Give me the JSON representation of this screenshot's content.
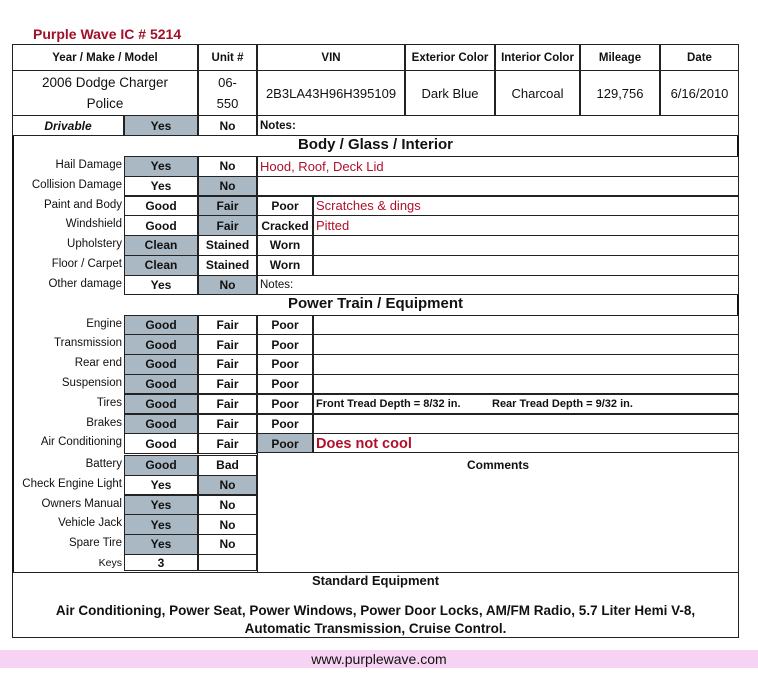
{
  "title": "Purple Wave IC # 5214",
  "header": {
    "columns": [
      "Year / Make / Model",
      "Unit #",
      "VIN",
      "Exterior Color",
      "Interior Color",
      "Mileage",
      "Date"
    ],
    "values": [
      "2006 Dodge Charger Police",
      "06-550",
      "2B3LA43H96H395109",
      "Dark Blue",
      "Charcoal",
      "129,756",
      "6/16/2010"
    ]
  },
  "drivable": {
    "label": "Drivable",
    "options": [
      "Yes",
      "No"
    ],
    "selected": 0,
    "notes_label": "Notes:"
  },
  "body_section": {
    "title": "Body / Glass / Interior",
    "rows": [
      {
        "label": "Hail Damage",
        "options": [
          "Yes",
          "No"
        ],
        "selected": 0,
        "note": "Hood, Roof, Deck Lid"
      },
      {
        "label": "Collision Damage",
        "options": [
          "Yes",
          "No"
        ],
        "selected": 1,
        "note": ""
      },
      {
        "label": "Paint and Body",
        "options": [
          "Good",
          "Fair",
          "Poor"
        ],
        "selected": 1,
        "note": "Scratches & dings"
      },
      {
        "label": "Windshield",
        "options": [
          "Good",
          "Fair",
          "Cracked"
        ],
        "selected": 1,
        "note": "Pitted"
      },
      {
        "label": "Upholstery",
        "options": [
          "Clean",
          "Stained",
          "Worn"
        ],
        "selected": 0,
        "note": ""
      },
      {
        "label": "Floor / Carpet",
        "options": [
          "Clean",
          "Stained",
          "Worn"
        ],
        "selected": 0,
        "note": ""
      },
      {
        "label": "Other damage",
        "options": [
          "Yes",
          "No"
        ],
        "selected": 1,
        "note": "Notes:"
      }
    ]
  },
  "power_section": {
    "title": "Power Train / Equipment",
    "rows": [
      {
        "label": "Engine",
        "options": [
          "Good",
          "Fair",
          "Poor"
        ],
        "selected": 0,
        "note": ""
      },
      {
        "label": "Transmission",
        "options": [
          "Good",
          "Fair",
          "Poor"
        ],
        "selected": 0,
        "note": ""
      },
      {
        "label": "Rear end",
        "options": [
          "Good",
          "Fair",
          "Poor"
        ],
        "selected": 0,
        "note": ""
      },
      {
        "label": "Suspension",
        "options": [
          "Good",
          "Fair",
          "Poor"
        ],
        "selected": 0,
        "note": ""
      },
      {
        "label": "Tires",
        "options": [
          "Good",
          "Fair",
          "Poor"
        ],
        "selected": 0,
        "note": "",
        "front_tread": "Front Tread Depth = 8/32 in.",
        "rear_tread": "Rear Tread Depth = 9/32 in."
      },
      {
        "label": "Brakes",
        "options": [
          "Good",
          "Fair",
          "Poor"
        ],
        "selected": 0,
        "note": ""
      },
      {
        "label": "Air Conditioning",
        "options": [
          "Good",
          "Fair",
          "Poor"
        ],
        "selected": 2,
        "note": "Does not cool"
      }
    ]
  },
  "equipment_rows": [
    {
      "label": "Battery",
      "options": [
        "Good",
        "Bad"
      ],
      "selected": 0
    },
    {
      "label": "Check Engine Light",
      "options": [
        "Yes",
        "No"
      ],
      "selected": 1
    },
    {
      "label": "Owners Manual",
      "options": [
        "Yes",
        "No"
      ],
      "selected": 0
    },
    {
      "label": "Vehicle Jack",
      "options": [
        "Yes",
        "No"
      ],
      "selected": 0
    },
    {
      "label": "Spare Tire",
      "options": [
        "Yes",
        "No"
      ],
      "selected": 0
    },
    {
      "label": "Keys",
      "options": [
        "3",
        ""
      ],
      "selected": -1
    }
  ],
  "comments_label": "Comments",
  "standard_equipment": {
    "title": "Standard Equipment",
    "text": "Air Conditioning, Power Seat, Power Windows, Power Door Locks, AM/FM Radio, 5.7 Liter Hemi V-8, Automatic Transmission, Cruise Control."
  },
  "footer": "www.purplewave.com",
  "colors": {
    "title": "#a0102a",
    "highlight": "#a9b8c3",
    "note": "#b0102a",
    "footer_bg": "#f7d3f3"
  }
}
